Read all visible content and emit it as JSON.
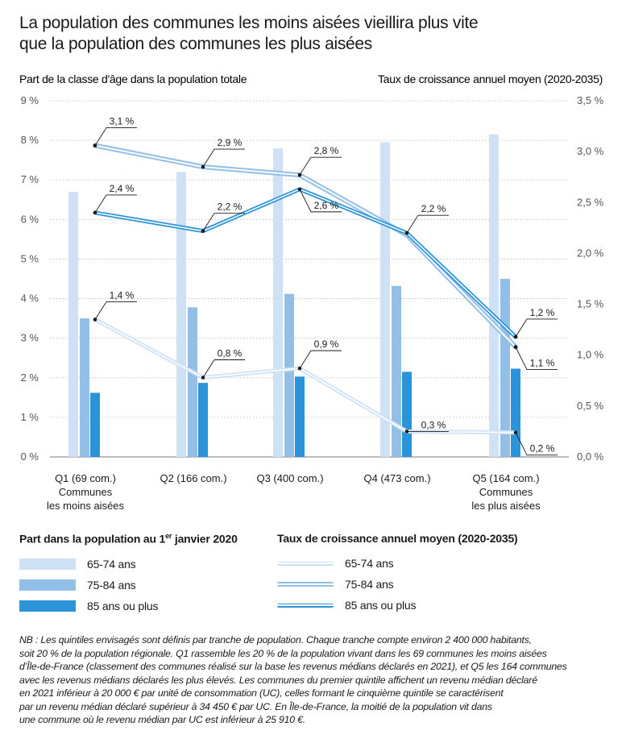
{
  "title_lines": [
    "La population des communes les moins aisées vieillira plus vite",
    "que la population des communes les plus aisées"
  ],
  "chart_data": {
    "type": "bar+line",
    "left_axis_label": "Part de la classe d'âge dans la population totale",
    "right_axis_label": "Taux de croissance annuel moyen (2020-2035)",
    "left_ylim": [
      0,
      9
    ],
    "right_ylim": [
      0,
      3.5
    ],
    "left_ticks": [
      "0 %",
      "1 %",
      "2 %",
      "3 %",
      "4 %",
      "5 %",
      "6 %",
      "7 %",
      "8 %",
      "9 %"
    ],
    "right_ticks": [
      "0,0 %",
      "0,5 %",
      "1,0 %",
      "1,5 %",
      "2,0 %",
      "2,5 %",
      "3,0 %",
      "3,5 %"
    ],
    "categories": [
      [
        "Q1 (69 com.)",
        "Communes",
        "les moins aisées"
      ],
      [
        "Q2 (166 com.)"
      ],
      [
        "Q3 (400 com.)"
      ],
      [
        "Q4 (473 com.)"
      ],
      [
        "Q5 (164 com.)",
        "Communes",
        "les plus aisées"
      ]
    ],
    "bars": [
      {
        "name": "65-74 ans",
        "color": "#cfe1f5",
        "values": [
          6.7,
          7.2,
          7.8,
          7.95,
          8.15
        ]
      },
      {
        "name": "75-84 ans",
        "color": "#93bfe6",
        "values": [
          3.5,
          3.78,
          4.12,
          4.32,
          4.5
        ]
      },
      {
        "name": "85 ans ou plus",
        "color": "#2b93d8",
        "values": [
          1.62,
          1.87,
          2.03,
          2.15,
          2.23
        ]
      }
    ],
    "lines": [
      {
        "name": "65-74 ans",
        "color": "#cfe1f5",
        "outer_width": 5,
        "values": [
          1.35,
          0.78,
          0.87,
          0.25,
          0.24
        ],
        "labels": [
          "1,4 %",
          "0,8 %",
          "0,9 %",
          "0,3 %",
          "0,2 %"
        ]
      },
      {
        "name": "75-84 ans",
        "color": "#93bfe6",
        "outer_width": 6,
        "values": [
          3.06,
          2.85,
          2.77,
          2.18,
          1.08
        ],
        "labels": [
          "3,1 %",
          "2,9 %",
          "2,8 %",
          "",
          "1,1 %"
        ]
      },
      {
        "name": "85 ans ou plus",
        "color": "#2b93d8",
        "outer_width": 5,
        "values": [
          2.4,
          2.22,
          2.63,
          2.2,
          1.18
        ],
        "labels": [
          "2,4 %",
          "2,2 %",
          "2,6 %",
          "2,2 %",
          "1,2 %"
        ]
      }
    ]
  },
  "legend_bars_title": "Part dans la population au 1",
  "legend_bars_title_sup": "er",
  "legend_bars_title_end": " janvier 2020",
  "legend_lines_title": "Taux de croissance annuel moyen (2020-2035)",
  "legend_items": [
    "65-74 ans",
    "75-84 ans",
    "85 ans ou plus"
  ],
  "note_lines": [
    "NB : Les quintiles envisagés sont définis par tranche de population. Chaque tranche compte environ 2 400 000 habitants,",
    "soit 20 % de la population régionale. Q1 rassemble les 20 % de la population vivant dans les 69 communes les moins aisées",
    "d’Île-de-France (classement des communes réalisé sur la base les revenus médians déclarés en 2021), et Q5 les 164 communes",
    "avec les revenus médians déclarés les plus élevés. Les communes du premier quintile affichent un revenu médian déclaré",
    "en 2021 inférieur à 20 000 € par unité de consommation (UC), celles formant le cinquième quintile se caractérisent",
    "par un revenu médian déclaré supérieur à 34 450 € par UC. En Île-de-France, la moitié de la population vit dans",
    "une commune où le revenu médian par UC est inférieur à 25 910 €."
  ]
}
